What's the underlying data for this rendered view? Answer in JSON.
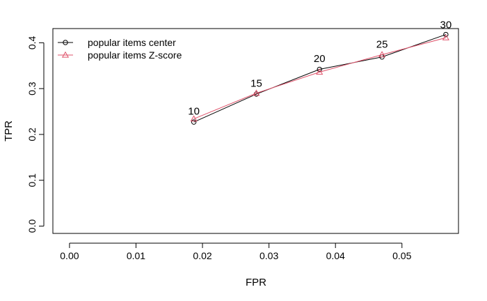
{
  "chart_data": {
    "type": "line",
    "title": "",
    "xlabel": "FPR",
    "ylabel": "TPR",
    "xlim": [
      -0.0025,
      0.0585
    ],
    "ylim": [
      -0.016,
      0.431
    ],
    "x_ticks": [
      0.0,
      0.01,
      0.02,
      0.03,
      0.04,
      0.05
    ],
    "x_tick_labels": [
      "0.00",
      "0.01",
      "0.02",
      "0.03",
      "0.04",
      "0.05"
    ],
    "y_ticks": [
      0.0,
      0.1,
      0.2,
      0.3,
      0.4
    ],
    "y_tick_labels": [
      "0.0",
      "0.1",
      "0.2",
      "0.3",
      "0.4"
    ],
    "grid": false,
    "legend_position": "top-left",
    "series": [
      {
        "name": "popular items center",
        "color": "#000000",
        "marker": "circle",
        "x": [
          0.0187,
          0.0281,
          0.0376,
          0.047,
          0.0566
        ],
        "y": [
          0.227,
          0.288,
          0.342,
          0.369,
          0.418
        ]
      },
      {
        "name": "popular items Z-score",
        "color": "#df536b",
        "marker": "triangle",
        "x": [
          0.0187,
          0.0281,
          0.0376,
          0.047,
          0.0566
        ],
        "y": [
          0.234,
          0.29,
          0.336,
          0.374,
          0.411
        ]
      }
    ],
    "point_labels": [
      {
        "text": "10",
        "x": 0.0187,
        "y": 0.243
      },
      {
        "text": "15",
        "x": 0.0281,
        "y": 0.304
      },
      {
        "text": "20",
        "x": 0.0376,
        "y": 0.358
      },
      {
        "text": "25",
        "x": 0.047,
        "y": 0.389
      },
      {
        "text": "30",
        "x": 0.0566,
        "y": 0.432
      }
    ]
  }
}
